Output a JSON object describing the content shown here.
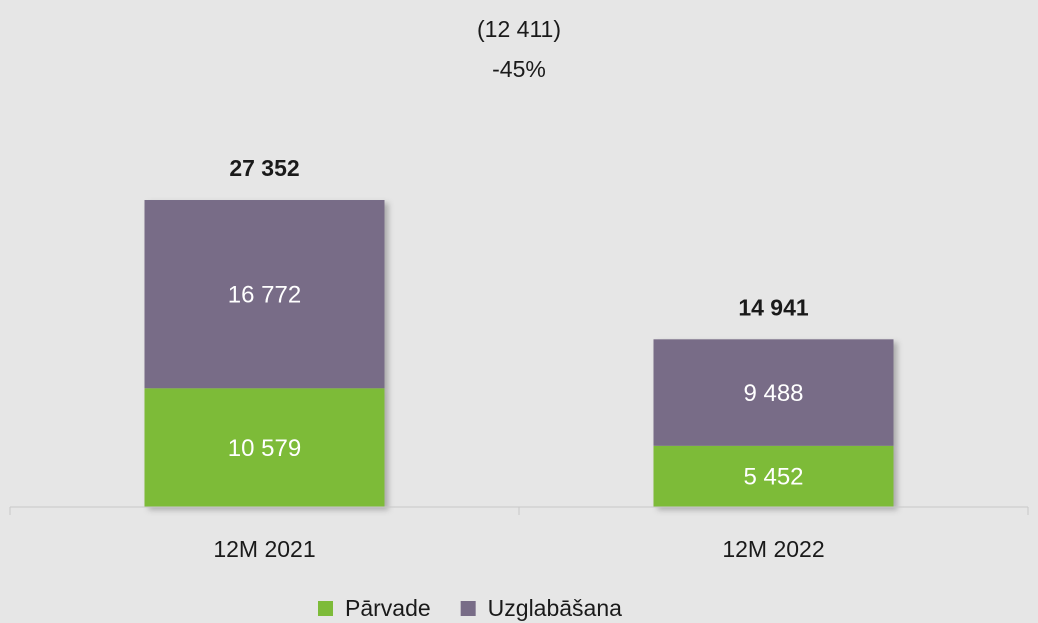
{
  "chart_data": {
    "type": "stacked_bar",
    "annotations": [
      "(12 411)",
      "-45%"
    ],
    "categories": [
      "12M 2021",
      "12M 2022"
    ],
    "series": [
      {
        "name": "Pārvade",
        "color": "#7dbb39",
        "values": [
          10579,
          5452
        ],
        "value_labels": [
          "10 579",
          "5 452"
        ]
      },
      {
        "name": "Uzglabāšana",
        "color": "#786c87",
        "values": [
          16772,
          9488
        ],
        "value_labels": [
          "16 772",
          "9 488"
        ]
      }
    ],
    "totals": [
      27352,
      14941
    ],
    "total_labels": [
      "27 352",
      "14 941"
    ],
    "legend": "bottom"
  }
}
